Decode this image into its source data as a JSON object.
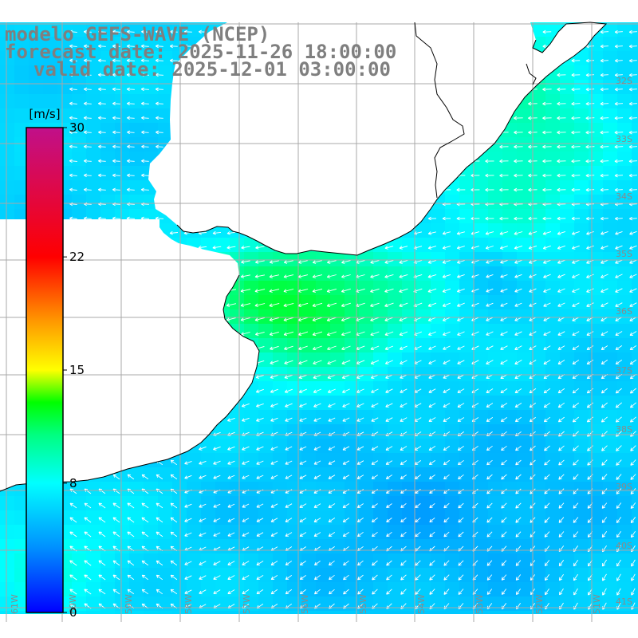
{
  "title": {
    "model": "modelo GEFS-WAVE (NCEP)",
    "forecast": "forecast date: 2025-11-26 18:00:00",
    "valid": "valid date: 2025-12-01 03:00:00"
  },
  "colorbar": {
    "unit": "[m/s]",
    "ticks": [
      "30",
      "22",
      "15",
      "8",
      "0"
    ],
    "tick_values": [
      30,
      22,
      15,
      8,
      0
    ],
    "min": 0,
    "max": 30
  },
  "graticule": {
    "lat_labels": [
      "32S",
      "33S",
      "34S",
      "35S",
      "36S",
      "37S",
      "38S",
      "39S",
      "40S",
      "41S"
    ],
    "lon_labels": [
      "61W",
      "60W",
      "59W",
      "58W",
      "57W",
      "56W",
      "55W",
      "54W",
      "53W",
      "52W",
      "51W"
    ]
  },
  "chart_data": {
    "type": "heatmap",
    "variable": "wind speed",
    "unit": "m/s",
    "value_range": [
      0,
      30
    ],
    "grid": true,
    "palette_stops": [
      {
        "value": 0,
        "color": "#0000ff"
      },
      {
        "value": 4,
        "color": "#0090ff"
      },
      {
        "value": 8,
        "color": "#00ffff"
      },
      {
        "value": 11,
        "color": "#00ff80"
      },
      {
        "value": 13,
        "color": "#00ff00"
      },
      {
        "value": 15,
        "color": "#ffff00"
      },
      {
        "value": 18,
        "color": "#ff9900"
      },
      {
        "value": 22,
        "color": "#ff0000"
      },
      {
        "value": 30,
        "color": "#c0108a"
      }
    ],
    "field_features": [
      {
        "region": "Rio de la Plata estuary",
        "speed": 12.5
      },
      {
        "region": "coast of Rio Grande do Sul",
        "speed": 10
      },
      {
        "region": "open ocean east",
        "speed": 6.5
      },
      {
        "region": "south-central open ocean",
        "speed": 5
      }
    ],
    "wind_direction": "easterly to northeasterly onshore flow"
  },
  "colors": {
    "land": "#ffffff",
    "grid": "#a8a8a8",
    "coast": "#000000",
    "title": "#7f7f7f",
    "arrows": "#ffffff"
  }
}
